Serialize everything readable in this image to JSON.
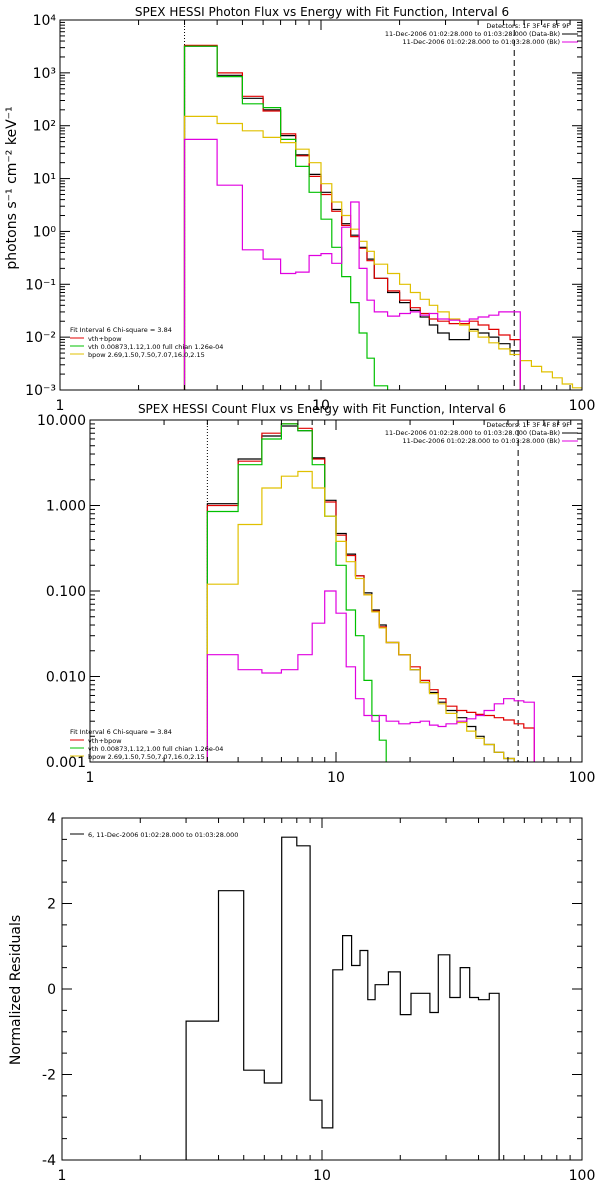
{
  "chart_data": [
    {
      "type": "line",
      "title": "SPEX HESSI Photon Flux vs Energy with Fit Function, Interval 6",
      "xlabel": "",
      "ylabel": "photons s⁻¹ cm⁻² keV⁻¹",
      "xscale": "log",
      "yscale": "log",
      "xlim": [
        1,
        100
      ],
      "ylim": [
        0.001,
        10000
      ],
      "xtick_labels": [
        "1",
        "10",
        "100"
      ],
      "ytick_labels": [
        "10⁻³",
        "10⁻²",
        "10⁻¹",
        "10⁰",
        "10¹",
        "10²",
        "10³",
        "10⁴"
      ],
      "x_edges": [
        3,
        4,
        5,
        6,
        7,
        8,
        9,
        10,
        11,
        12,
        13,
        14,
        15,
        16,
        18,
        20,
        22,
        24,
        26,
        28,
        31,
        34,
        37,
        40,
        44,
        48,
        53,
        58,
        64,
        70,
        77,
        84,
        92,
        100
      ],
      "markers": {
        "dotted_x": 3,
        "dashed_x": 55
      },
      "header": {
        "detectors": "Detectors: 1F 3F 4F 8F 9F",
        "line1": "11-Dec-2006 01:02:28.000 to 01:03:28.000 (Data-Bk)",
        "line2": "11-Dec-2006 01:02:28.000 to 01:03:28.000 (Bk)"
      },
      "legend": {
        "title": "Fit Interval 6   Chi-square = 3.84",
        "entries": [
          {
            "label": "vth+bpow",
            "color": "#e00000"
          },
          {
            "label": "vth 0.00873,1.12,1.00  full chian 1.26e-04",
            "color": "#00c000"
          },
          {
            "label": "bpow 2.69,1.50,7.50,7.07,16.0,2.15",
            "color": "#e0c000"
          }
        ]
      },
      "series": [
        {
          "color": "#000000",
          "n_bins": 27,
          "values": [
            3200,
            900,
            330,
            200,
            65,
            28,
            12,
            5.5,
            2.6,
            1.4,
            0.85,
            0.5,
            0.3,
            0.13,
            0.07,
            0.045,
            0.032,
            0.024,
            0.017,
            0.012,
            0.009,
            0.009,
            0.014,
            0.012,
            0.01,
            0.0075,
            0.0055
          ]
        },
        {
          "color": "#e00000",
          "n_bins": 27,
          "values": [
            3300,
            1000,
            360,
            190,
            70,
            27,
            11,
            5.0,
            2.4,
            1.3,
            0.8,
            0.48,
            0.28,
            0.13,
            0.075,
            0.05,
            0.036,
            0.028,
            0.022,
            0.02,
            0.018,
            0.018,
            0.02,
            0.017,
            0.014,
            0.011,
            0.009
          ]
        },
        {
          "color": "#00c000",
          "n_bins": 15,
          "values": [
            3200,
            850,
            260,
            220,
            55,
            17,
            5.5,
            1.7,
            0.5,
            0.14,
            0.045,
            0.012,
            0.004,
            0.0012,
            0.0003
          ]
        },
        {
          "color": "#e0c000",
          "n_bins": 33,
          "values": [
            150,
            110,
            80,
            60,
            48,
            36,
            20,
            8.0,
            3.6,
            2.0,
            1.1,
            0.65,
            0.42,
            0.24,
            0.16,
            0.1,
            0.07,
            0.052,
            0.04,
            0.03,
            0.022,
            0.017,
            0.013,
            0.01,
            0.0078,
            0.006,
            0.0047,
            0.0036,
            0.0028,
            0.0022,
            0.0017,
            0.0013,
            0.0011
          ]
        },
        {
          "color": "#e000e0",
          "n_bins": 27,
          "values": [
            55,
            7.5,
            0.45,
            0.3,
            0.16,
            0.17,
            0.35,
            0.38,
            0.25,
            1.2,
            3.6,
            0.2,
            0.05,
            0.03,
            0.025,
            0.028,
            0.03,
            0.026,
            0.028,
            0.022,
            0.021,
            0.02,
            0.022,
            0.024,
            0.026,
            0.03,
            0.03
          ]
        }
      ]
    },
    {
      "type": "line",
      "title": "SPEX HESSI Count Flux vs Energy with Fit Function, Interval 6",
      "xlabel": "",
      "ylabel": "",
      "xscale": "log",
      "yscale": "log",
      "xlim": [
        1,
        100
      ],
      "ylim": [
        0.001,
        10
      ],
      "xtick_labels": [
        "1",
        "10",
        "100"
      ],
      "ytick_labels": [
        "0.001",
        "0.010",
        "0.100",
        "1.000",
        "10.000"
      ],
      "x_edges": [
        3,
        4,
        5,
        6,
        7,
        8,
        9,
        10,
        11,
        12,
        13,
        14,
        15,
        16,
        18,
        20,
        22,
        24,
        26,
        28,
        31,
        34,
        37,
        40,
        44,
        48,
        53,
        58,
        64,
        70,
        77,
        84,
        92,
        100
      ],
      "markers": {
        "dotted_x": 3,
        "dashed_x": 55
      },
      "header": {
        "detectors": "Detectors: 1F 3F 4F 8F 9F",
        "line1": "11-Dec-2006 01:02:28.000 to 01:03:28.000 (Data-Bk)",
        "line2": "11-Dec-2006 01:02:28.000 to 01:03:28.000 (Bk)"
      },
      "legend": {
        "title": "Fit Interval 6   Chi-square = 3.84",
        "entries": [
          {
            "label": "vth+bpow",
            "color": "#e00000"
          },
          {
            "label": "vth 0.00873,1.12,1.00  full chian 1.26e-04",
            "color": "#00c000"
          },
          {
            "label": "bpow 2.69,1.50,7.50,7.07,16.0,2.15",
            "color": "#e0c000"
          }
        ]
      },
      "series": [
        {
          "color": "#000000",
          "n_bins": 28,
          "values": [
            1.05,
            3.5,
            6.5,
            8.5,
            7.5,
            3.6,
            1.15,
            0.47,
            0.27,
            0.15,
            0.095,
            0.06,
            0.04,
            0.025,
            0.018,
            0.012,
            0.0085,
            0.0065,
            0.005,
            0.004,
            0.0033,
            0.0026,
            0.002,
            0.0016,
            0.0013,
            0.0011,
            0.001,
            0.0009
          ]
        },
        {
          "color": "#e00000",
          "n_bins": 28,
          "values": [
            1.0,
            3.3,
            7.0,
            9.0,
            8.0,
            3.5,
            1.1,
            0.45,
            0.26,
            0.15,
            0.09,
            0.058,
            0.038,
            0.025,
            0.018,
            0.013,
            0.009,
            0.007,
            0.0055,
            0.0045,
            0.004,
            0.0038,
            0.0036,
            0.0035,
            0.0033,
            0.0031,
            0.0028,
            0.0025
          ]
        },
        {
          "color": "#00c000",
          "n_bins": 15,
          "values": [
            0.85,
            3.0,
            6.0,
            9.0,
            7.5,
            3.0,
            0.75,
            0.2,
            0.06,
            0.03,
            0.009,
            0.0035,
            0.0018,
            0.0009,
            0.0006
          ]
        },
        {
          "color": "#e0c000",
          "n_bins": 33,
          "values": [
            0.12,
            0.6,
            1.6,
            2.2,
            2.5,
            1.6,
            0.75,
            0.38,
            0.22,
            0.14,
            0.09,
            0.057,
            0.037,
            0.025,
            0.018,
            0.012,
            0.0085,
            0.0063,
            0.0048,
            0.0037,
            0.0029,
            0.0023,
            0.0019,
            0.0016,
            0.0013,
            0.0011,
            0.00095,
            0.0008,
            0.0007,
            0.0006,
            0.0005,
            0.00045,
            0.0004
          ]
        },
        {
          "color": "#e000e0",
          "n_bins": 28,
          "values": [
            0.018,
            0.012,
            0.011,
            0.012,
            0.018,
            0.042,
            0.1,
            0.055,
            0.013,
            0.0055,
            0.0035,
            0.003,
            0.0035,
            0.003,
            0.0028,
            0.0029,
            0.003,
            0.0027,
            0.0026,
            0.0028,
            0.003,
            0.0032,
            0.0035,
            0.004,
            0.0048,
            0.0055,
            0.0052,
            0.005
          ]
        }
      ]
    },
    {
      "type": "line",
      "title": "",
      "xlabel": "",
      "ylabel": "Normalized Residuals",
      "xscale": "log",
      "yscale": "linear",
      "xlim": [
        1,
        100
      ],
      "ylim": [
        -4,
        4
      ],
      "xtick_labels": [
        "1",
        "10",
        "100"
      ],
      "ytick_labels": [
        "-4",
        "-2",
        "0",
        "2",
        "4"
      ],
      "legend": {
        "entries": [
          {
            "label": "6, 11-Dec-2006 01:02:28.000 to 01:03:28.000",
            "color": "#000000"
          }
        ]
      },
      "x_edges": [
        3,
        4,
        5,
        6,
        7,
        8,
        9,
        10,
        11,
        12,
        13,
        14,
        15,
        16,
        18,
        20,
        22,
        24,
        26,
        28,
        31,
        34,
        37,
        40,
        44,
        48,
        53,
        58
      ],
      "series": [
        {
          "color": "#000000",
          "values": [
            -0.75,
            2.3,
            -1.9,
            -2.2,
            3.55,
            3.35,
            -2.6,
            -3.25,
            0.45,
            1.25,
            0.55,
            0.9,
            -0.25,
            0.1,
            0.4,
            -0.6,
            -0.1,
            -0.1,
            -0.55,
            0.8,
            -0.2,
            0.5,
            -0.2,
            -0.25,
            -0.1
          ]
        }
      ]
    }
  ]
}
